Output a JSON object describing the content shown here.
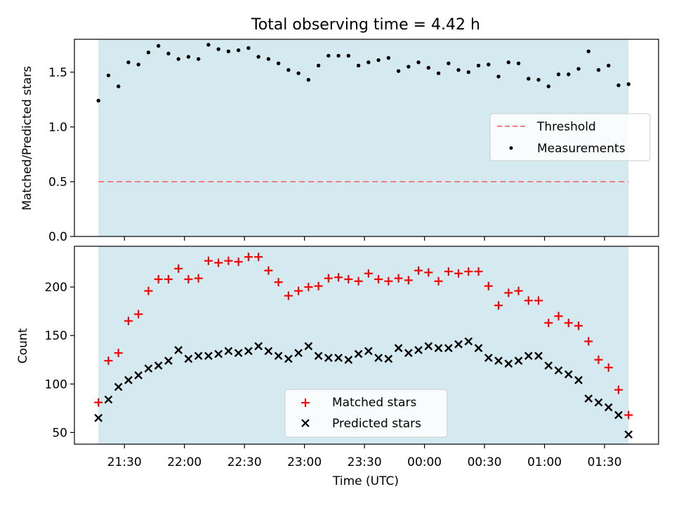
{
  "title": "Total observing time = 4.42 h",
  "x_axis": {
    "label": "Time (UTC)",
    "ticks": [
      "21:30",
      "22:00",
      "22:30",
      "23:00",
      "23:30",
      "00:00",
      "00:30",
      "01:00",
      "01:30"
    ]
  },
  "colors": {
    "shade": "#d4eaf0",
    "threshold": "#f08080",
    "measurement": "#000000",
    "matched": "#ff0000",
    "predicted": "#000000"
  },
  "chart_data": [
    {
      "type": "scatter",
      "ylabel": "Matched/Predicted stars",
      "ylim": [
        0,
        1.8
      ],
      "yticks": [
        "0.0",
        "0.5",
        "1.0",
        "1.5"
      ],
      "legend": {
        "placement": "center-right",
        "threshold_label": "Threshold",
        "measurements_label": "Measurements"
      },
      "threshold": 0.5,
      "x_start": "21:17",
      "x_end": "01:42",
      "x_step_minutes": 5,
      "values": [
        1.24,
        1.47,
        1.37,
        1.59,
        1.57,
        1.68,
        1.74,
        1.67,
        1.62,
        1.64,
        1.62,
        1.75,
        1.71,
        1.69,
        1.7,
        1.72,
        1.64,
        1.62,
        1.58,
        1.52,
        1.49,
        1.43,
        1.56,
        1.65,
        1.65,
        1.65,
        1.56,
        1.59,
        1.61,
        1.63,
        1.51,
        1.55,
        1.59,
        1.54,
        1.49,
        1.58,
        1.52,
        1.5,
        1.56,
        1.57,
        1.46,
        1.59,
        1.58,
        1.44,
        1.43,
        1.37,
        1.48,
        1.48,
        1.53,
        1.69,
        1.52,
        1.56,
        1.38,
        1.39
      ]
    },
    {
      "type": "scatter",
      "ylabel": "Count",
      "ylim": [
        38,
        242
      ],
      "yticks": [
        "50",
        "100",
        "150",
        "200"
      ],
      "legend": {
        "placement": "lower-center"
      },
      "x_start": "21:17",
      "x_end": "01:42",
      "x_step_minutes": 5,
      "series": [
        {
          "name": "Matched stars",
          "values": [
            81,
            124,
            132,
            165,
            172,
            196,
            208,
            208,
            219,
            208,
            209,
            227,
            225,
            227,
            226,
            231,
            231,
            217,
            205,
            191,
            196,
            200,
            201,
            209,
            210,
            208,
            206,
            214,
            208,
            206,
            209,
            207,
            217,
            215,
            206,
            216,
            214,
            216,
            216,
            201,
            181,
            194,
            196,
            186,
            186,
            163,
            170,
            163,
            160,
            144,
            125,
            117,
            94,
            68
          ]
        },
        {
          "name": "Predicted stars",
          "values": [
            65,
            84,
            97,
            104,
            109,
            116,
            119,
            124,
            135,
            126,
            129,
            129,
            131,
            134,
            132,
            134,
            139,
            134,
            129,
            126,
            132,
            139,
            129,
            127,
            127,
            125,
            131,
            134,
            127,
            126,
            137,
            132,
            135,
            139,
            137,
            137,
            141,
            144,
            137,
            127,
            124,
            121,
            124,
            129,
            129,
            119,
            114,
            110,
            104,
            85,
            81,
            76,
            68,
            48
          ]
        }
      ]
    }
  ]
}
